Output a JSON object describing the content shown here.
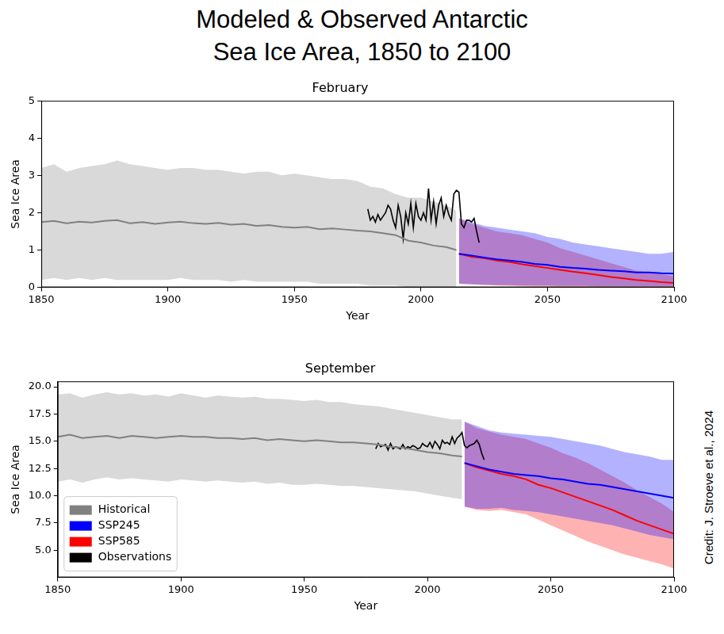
{
  "title": [
    "Modeled & Observed Antarctic",
    "Sea Ice Area, 1850 to 2100"
  ],
  "credit": "Credit: J. Stroeve et al., 2024",
  "chart_data": [
    {
      "type": "line",
      "title": "February",
      "xlabel": "Year",
      "ylabel": "Sea Ice Area",
      "grid": false,
      "xlim": [
        1850,
        2100
      ],
      "xticks": [
        1850,
        1900,
        1950,
        2000,
        2050,
        2100
      ],
      "ylim": [
        0,
        5
      ],
      "yticks": [
        0,
        1,
        2,
        3,
        4,
        5
      ],
      "series": [
        {
          "name": "Historical",
          "color": "#808080",
          "x": [
            1850,
            1855,
            1860,
            1865,
            1870,
            1875,
            1880,
            1885,
            1890,
            1895,
            1900,
            1905,
            1910,
            1915,
            1920,
            1925,
            1930,
            1935,
            1940,
            1945,
            1950,
            1955,
            1960,
            1965,
            1970,
            1975,
            1980,
            1985,
            1990,
            1995,
            2000,
            2005,
            2010,
            2014
          ],
          "values": [
            1.75,
            1.78,
            1.72,
            1.76,
            1.74,
            1.78,
            1.8,
            1.72,
            1.75,
            1.7,
            1.74,
            1.76,
            1.72,
            1.7,
            1.73,
            1.68,
            1.7,
            1.65,
            1.67,
            1.62,
            1.6,
            1.62,
            1.56,
            1.58,
            1.55,
            1.52,
            1.5,
            1.45,
            1.4,
            1.25,
            1.2,
            1.12,
            1.08,
            1.0
          ],
          "upper": [
            3.2,
            3.3,
            3.1,
            3.2,
            3.25,
            3.3,
            3.4,
            3.3,
            3.25,
            3.2,
            3.15,
            3.2,
            3.2,
            3.15,
            3.15,
            3.1,
            3.05,
            3.1,
            3.1,
            3.0,
            3.05,
            3.0,
            2.95,
            2.9,
            2.9,
            2.85,
            2.7,
            2.65,
            2.5,
            2.4,
            2.4,
            2.3,
            2.2,
            2.05
          ],
          "lower": [
            0.2,
            0.25,
            0.2,
            0.25,
            0.2,
            0.25,
            0.2,
            0.2,
            0.2,
            0.2,
            0.2,
            0.25,
            0.2,
            0.2,
            0.2,
            0.15,
            0.2,
            0.15,
            0.15,
            0.15,
            0.15,
            0.15,
            0.1,
            0.1,
            0.1,
            0.1,
            0.05,
            0.05,
            0.05,
            0.0,
            0.0,
            0.0,
            0.0,
            0.0
          ]
        },
        {
          "name": "SSP245",
          "color": "#0000ff",
          "x": [
            2015,
            2020,
            2025,
            2030,
            2035,
            2040,
            2045,
            2050,
            2055,
            2060,
            2065,
            2070,
            2075,
            2080,
            2085,
            2090,
            2095,
            2100
          ],
          "values": [
            0.9,
            0.85,
            0.8,
            0.75,
            0.72,
            0.68,
            0.63,
            0.6,
            0.55,
            0.52,
            0.5,
            0.47,
            0.45,
            0.43,
            0.4,
            0.4,
            0.38,
            0.37
          ],
          "upper": [
            1.85,
            1.75,
            1.65,
            1.6,
            1.55,
            1.5,
            1.45,
            1.35,
            1.3,
            1.2,
            1.15,
            1.1,
            1.05,
            1.0,
            0.95,
            0.9,
            0.9,
            0.95
          ],
          "lower": [
            0.1,
            0.08,
            0.07,
            0.06,
            0.06,
            0.05,
            0.05,
            0.05,
            0.04,
            0.04,
            0.04,
            0.03,
            0.03,
            0.03,
            0.03,
            0.03,
            0.03,
            0.03
          ]
        },
        {
          "name": "SSP585",
          "color": "#ff0000",
          "x": [
            2015,
            2020,
            2025,
            2030,
            2035,
            2040,
            2045,
            2050,
            2055,
            2060,
            2065,
            2070,
            2075,
            2080,
            2085,
            2090,
            2095,
            2100
          ],
          "values": [
            0.9,
            0.82,
            0.78,
            0.72,
            0.68,
            0.62,
            0.57,
            0.52,
            0.47,
            0.42,
            0.38,
            0.33,
            0.28,
            0.24,
            0.2,
            0.17,
            0.14,
            0.12
          ],
          "upper": [
            1.85,
            1.7,
            1.6,
            1.5,
            1.45,
            1.4,
            1.3,
            1.2,
            1.05,
            0.95,
            0.85,
            0.75,
            0.65,
            0.55,
            0.45,
            0.4,
            0.35,
            0.3
          ],
          "lower": [
            0.1,
            0.08,
            0.06,
            0.05,
            0.04,
            0.03,
            0.02,
            0.02,
            0.01,
            0.01,
            0.01,
            0.0,
            0.0,
            0.0,
            0.0,
            0.0,
            0.0,
            0.0
          ]
        },
        {
          "name": "Observations",
          "color": "#000000",
          "x": [
            1979,
            1980,
            1981,
            1982,
            1983,
            1984,
            1985,
            1986,
            1987,
            1988,
            1989,
            1990,
            1991,
            1992,
            1993,
            1994,
            1995,
            1996,
            1997,
            1998,
            1999,
            2000,
            2001,
            2002,
            2003,
            2004,
            2005,
            2006,
            2007,
            2008,
            2009,
            2010,
            2011,
            2012,
            2013,
            2014,
            2015,
            2016,
            2017,
            2018,
            2019,
            2020,
            2021,
            2022,
            2023
          ],
          "values": [
            2.1,
            1.8,
            1.9,
            1.75,
            1.95,
            1.8,
            1.9,
            2.0,
            2.2,
            2.1,
            1.8,
            1.6,
            2.2,
            1.9,
            1.3,
            2.0,
            1.7,
            2.25,
            1.6,
            2.25,
            1.9,
            1.8,
            2.0,
            1.8,
            2.65,
            1.8,
            2.3,
            1.7,
            2.2,
            2.4,
            1.9,
            2.2,
            1.95,
            1.8,
            2.5,
            2.6,
            2.55,
            1.7,
            1.6,
            1.8,
            1.8,
            1.75,
            1.85,
            1.5,
            1.2
          ]
        }
      ]
    },
    {
      "type": "line",
      "title": "September",
      "xlabel": "Year",
      "ylabel": "Sea Ice Area",
      "grid": false,
      "legend": "lower left",
      "xlim": [
        1850,
        2100
      ],
      "xticks": [
        1850,
        1900,
        1950,
        2000,
        2050,
        2100
      ],
      "ylim": [
        2.5,
        20.5
      ],
      "yticks": [
        {
          "value": 5,
          "label": "5.0"
        },
        7.5,
        {
          "value": 10,
          "label": "10.0"
        },
        12.5,
        {
          "value": 15,
          "label": "15.0"
        },
        17.5,
        {
          "value": 20,
          "label": "20.0"
        }
      ],
      "series": [
        {
          "name": "Historical",
          "color": "#808080",
          "x": [
            1850,
            1855,
            1860,
            1865,
            1870,
            1875,
            1880,
            1885,
            1890,
            1895,
            1900,
            1905,
            1910,
            1915,
            1920,
            1925,
            1930,
            1935,
            1940,
            1945,
            1950,
            1955,
            1960,
            1965,
            1970,
            1975,
            1980,
            1985,
            1990,
            1995,
            2000,
            2005,
            2010,
            2014
          ],
          "values": [
            15.4,
            15.6,
            15.3,
            15.4,
            15.5,
            15.3,
            15.5,
            15.4,
            15.3,
            15.4,
            15.5,
            15.4,
            15.4,
            15.3,
            15.3,
            15.2,
            15.3,
            15.1,
            15.2,
            15.1,
            15.0,
            15.1,
            15.0,
            14.9,
            14.9,
            14.8,
            14.7,
            14.5,
            14.4,
            14.2,
            14.0,
            13.9,
            13.7,
            13.6
          ],
          "upper": [
            19.3,
            19.4,
            19.0,
            19.3,
            19.5,
            19.3,
            19.4,
            19.2,
            19.3,
            19.1,
            19.4,
            19.2,
            19.0,
            19.2,
            19.1,
            19.0,
            19.1,
            18.9,
            18.9,
            18.8,
            18.7,
            18.8,
            18.6,
            18.6,
            18.4,
            18.3,
            18.2,
            18.0,
            17.8,
            17.6,
            17.4,
            17.2,
            17.0,
            17.0
          ],
          "lower": [
            11.3,
            11.5,
            11.2,
            11.5,
            11.7,
            11.5,
            11.6,
            11.5,
            11.4,
            11.3,
            11.5,
            11.4,
            11.3,
            11.4,
            11.3,
            11.2,
            11.3,
            11.1,
            11.2,
            11.0,
            11.0,
            11.1,
            11.0,
            10.9,
            10.9,
            10.8,
            10.7,
            10.6,
            10.5,
            10.4,
            10.2,
            10.0,
            9.8,
            9.7
          ]
        },
        {
          "name": "SSP245",
          "color": "#0000ff",
          "x": [
            2015,
            2020,
            2025,
            2030,
            2035,
            2040,
            2045,
            2050,
            2055,
            2060,
            2065,
            2070,
            2075,
            2080,
            2085,
            2090,
            2095,
            2100
          ],
          "values": [
            13.0,
            12.7,
            12.4,
            12.2,
            12.0,
            11.9,
            11.8,
            11.6,
            11.5,
            11.3,
            11.1,
            11.0,
            10.8,
            10.6,
            10.4,
            10.2,
            10.0,
            9.8
          ],
          "upper": [
            16.8,
            16.4,
            16.0,
            15.8,
            15.7,
            15.6,
            15.5,
            15.4,
            15.2,
            15.0,
            14.8,
            14.6,
            14.3,
            14.0,
            13.8,
            13.6,
            13.3,
            13.3
          ],
          "lower": [
            9.0,
            8.8,
            8.8,
            8.9,
            8.7,
            8.6,
            8.5,
            8.3,
            8.1,
            7.9,
            7.7,
            7.5,
            7.3,
            7.0,
            6.7,
            6.4,
            6.2,
            6.0
          ]
        },
        {
          "name": "SSP585",
          "color": "#ff0000",
          "x": [
            2015,
            2020,
            2025,
            2030,
            2035,
            2040,
            2045,
            2050,
            2055,
            2060,
            2065,
            2070,
            2075,
            2080,
            2085,
            2090,
            2095,
            2100
          ],
          "values": [
            13.0,
            12.6,
            12.3,
            12.0,
            11.8,
            11.5,
            11.0,
            10.7,
            10.3,
            9.9,
            9.5,
            9.1,
            8.7,
            8.2,
            7.7,
            7.3,
            6.9,
            6.5
          ],
          "upper": [
            16.8,
            16.2,
            15.9,
            15.6,
            15.4,
            15.2,
            14.8,
            14.4,
            13.9,
            13.5,
            13.0,
            12.4,
            11.8,
            11.2,
            10.5,
            9.9,
            9.3,
            8.5
          ],
          "lower": [
            9.0,
            8.7,
            8.6,
            8.7,
            8.5,
            8.3,
            7.8,
            7.3,
            6.8,
            6.3,
            5.8,
            5.4,
            5.0,
            4.6,
            4.3,
            4.0,
            3.7,
            3.3
          ]
        },
        {
          "name": "Observations",
          "color": "#000000",
          "x": [
            1979,
            1980,
            1981,
            1982,
            1983,
            1984,
            1985,
            1986,
            1987,
            1988,
            1989,
            1990,
            1991,
            1992,
            1993,
            1994,
            1995,
            1996,
            1997,
            1998,
            1999,
            2000,
            2001,
            2002,
            2003,
            2004,
            2005,
            2006,
            2007,
            2008,
            2009,
            2010,
            2011,
            2012,
            2013,
            2014,
            2015,
            2016,
            2017,
            2018,
            2019,
            2020,
            2021,
            2022,
            2023
          ],
          "values": [
            14.3,
            14.8,
            14.5,
            14.6,
            14.7,
            14.2,
            14.8,
            14.3,
            14.5,
            14.4,
            14.3,
            14.7,
            14.3,
            14.5,
            14.4,
            14.6,
            14.5,
            14.3,
            14.4,
            14.8,
            14.6,
            14.5,
            14.9,
            14.4,
            15.0,
            14.7,
            14.3,
            15.1,
            14.8,
            14.9,
            14.7,
            15.4,
            14.8,
            15.3,
            15.5,
            15.8,
            14.6,
            14.4,
            14.6,
            14.7,
            14.8,
            15.1,
            14.7,
            13.9,
            13.3
          ]
        }
      ]
    }
  ]
}
